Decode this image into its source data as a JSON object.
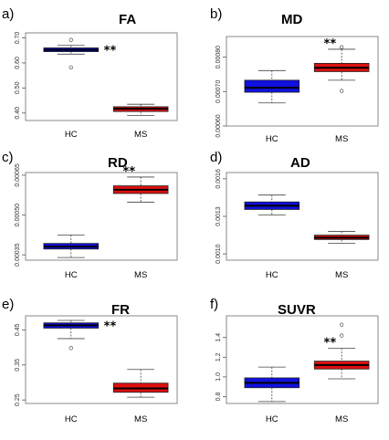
{
  "colors": {
    "HC": "#1010dd",
    "MS": "#dd1010",
    "median": "#000000",
    "frame": "#888888"
  },
  "chart_data": [
    {
      "type": "box",
      "panel": "a)",
      "title": "FA",
      "categories": [
        "HC",
        "MS"
      ],
      "ylim": [
        0.37,
        0.72
      ],
      "ticks": [
        "0.40",
        "0.50",
        "0.60",
        "0.70"
      ],
      "tick_values": [
        0.4,
        0.5,
        0.6,
        0.7
      ],
      "boxes": [
        {
          "name": "HC",
          "whisker_low": 0.635,
          "q1": 0.645,
          "median": 0.652,
          "q3": 0.66,
          "whisker_high": 0.67,
          "outliers": [
            0.582,
            0.692
          ]
        },
        {
          "name": "MS",
          "whisker_low": 0.39,
          "q1": 0.406,
          "median": 0.417,
          "q3": 0.425,
          "whisker_high": 0.435,
          "outliers": []
        }
      ],
      "significance": "**",
      "significance_at": "HC"
    },
    {
      "type": "box",
      "panel": "b)",
      "title": "MD",
      "categories": [
        "HC",
        "MS"
      ],
      "ylim": [
        0.0006,
        0.00086
      ],
      "ticks": [
        "0.00060",
        "0.00070",
        "0.00080"
      ],
      "tick_values": [
        0.0006,
        0.0007,
        0.0008
      ],
      "boxes": [
        {
          "name": "HC",
          "whisker_low": 0.000667,
          "q1": 0.000698,
          "median": 0.000711,
          "q3": 0.000733,
          "whisker_high": 0.000761,
          "outliers": []
        },
        {
          "name": "MS",
          "whisker_low": 0.000733,
          "q1": 0.000758,
          "median": 0.000769,
          "q3": 0.000782,
          "whisker_high": 0.000823,
          "outliers": [
            0.000702,
            0.000829
          ]
        }
      ],
      "significance": "**",
      "significance_at": "MS"
    },
    {
      "type": "box",
      "panel": "c)",
      "title": "RD",
      "categories": [
        "HC",
        "MS"
      ],
      "ylim": [
        0.00033,
        0.00066
      ],
      "ticks": [
        "0.00035",
        "0.00050",
        "0.00065"
      ],
      "tick_values": [
        0.00035,
        0.0005,
        0.00065
      ],
      "boxes": [
        {
          "name": "HC",
          "whisker_low": 0.00034,
          "q1": 0.000372,
          "median": 0.000381,
          "q3": 0.000393,
          "whisker_high": 0.000425,
          "outliers": []
        },
        {
          "name": "MS",
          "whisker_low": 0.000548,
          "q1": 0.000581,
          "median": 0.000595,
          "q3": 0.00061,
          "whisker_high": 0.000643,
          "outliers": []
        }
      ],
      "significance": "**",
      "significance_at": "MS"
    },
    {
      "type": "box",
      "panel": "d)",
      "title": "AD",
      "categories": [
        "HC",
        "MS"
      ],
      "ylim": [
        0.00095,
        0.00165
      ],
      "ticks": [
        "0.0010",
        "0.0013",
        "0.0016"
      ],
      "tick_values": [
        0.001,
        0.0013,
        0.0016
      ],
      "boxes": [
        {
          "name": "HC",
          "whisker_low": 0.00131,
          "q1": 0.001355,
          "median": 0.001385,
          "q3": 0.001415,
          "whisker_high": 0.00147,
          "outliers": []
        },
        {
          "name": "MS",
          "whisker_low": 0.001085,
          "q1": 0.001115,
          "median": 0.00113,
          "q3": 0.00115,
          "whisker_high": 0.00118,
          "outliers": []
        }
      ],
      "significance": "",
      "significance_at": ""
    },
    {
      "type": "box",
      "panel": "e)",
      "title": "FR",
      "categories": [
        "HC",
        "MS"
      ],
      "ylim": [
        0.24,
        0.49
      ],
      "ticks": [
        "0.25",
        "0.35",
        "0.45"
      ],
      "tick_values": [
        0.25,
        0.35,
        0.45
      ],
      "boxes": [
        {
          "name": "HC",
          "whisker_low": 0.425,
          "q1": 0.455,
          "median": 0.463,
          "q3": 0.47,
          "whisker_high": 0.477,
          "outliers": [
            0.398
          ]
        },
        {
          "name": "MS",
          "whisker_low": 0.258,
          "q1": 0.272,
          "median": 0.283,
          "q3": 0.298,
          "whisker_high": 0.337,
          "outliers": []
        }
      ],
      "significance": "**",
      "significance_at": "HC"
    },
    {
      "type": "box",
      "panel": "f)",
      "title": "SUVR",
      "categories": [
        "HC",
        "MS"
      ],
      "ylim": [
        0.73,
        1.62
      ],
      "ticks": [
        "0.8",
        "1.0",
        "1.2",
        "1.4"
      ],
      "tick_values": [
        0.8,
        1.0,
        1.2,
        1.4
      ],
      "boxes": [
        {
          "name": "HC",
          "whisker_low": 0.75,
          "q1": 0.89,
          "median": 0.94,
          "q3": 0.99,
          "whisker_high": 1.1,
          "outliers": []
        },
        {
          "name": "MS",
          "whisker_low": 0.98,
          "q1": 1.08,
          "median": 1.12,
          "q3": 1.16,
          "whisker_high": 1.29,
          "outliers": [
            1.42,
            1.53
          ]
        }
      ],
      "significance": "**",
      "significance_at": "MS"
    }
  ]
}
